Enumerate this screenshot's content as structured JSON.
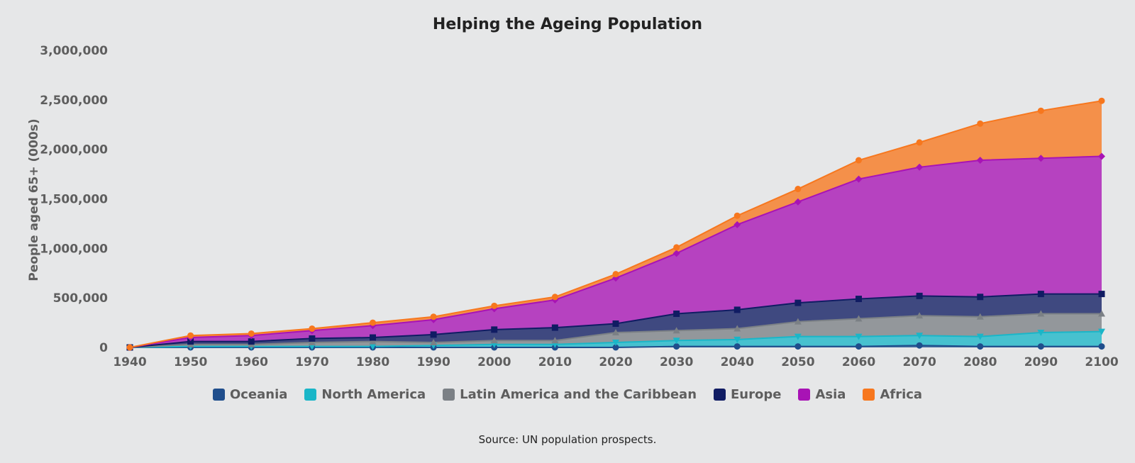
{
  "chart_data": {
    "type": "area",
    "stacked": true,
    "title": "Helping the Ageing Population",
    "ylabel": "People aged 65+ (000s)",
    "xlabel": "",
    "x": [
      1940,
      1950,
      1960,
      1970,
      1980,
      1990,
      2000,
      2010,
      2020,
      2030,
      2040,
      2050,
      2060,
      2070,
      2080,
      2090,
      2100
    ],
    "ylim": [
      0,
      3000000
    ],
    "yticks": [
      0,
      500000,
      1000000,
      1500000,
      2000000,
      2500000,
      3000000
    ],
    "ytick_labels": [
      "0",
      "500,000",
      "1,000,000",
      "1,500,000",
      "2,000,000",
      "2,500,000",
      "3,000,000"
    ],
    "series": [
      {
        "name": "Oceania",
        "color": "#1f4e8c",
        "marker": "circle",
        "values": [
          0,
          0,
          0,
          0,
          0,
          0,
          0,
          0,
          0,
          10000,
          10000,
          10000,
          10000,
          20000,
          10000,
          10000,
          10000
        ]
      },
      {
        "name": "North America",
        "color": "#1ab6c8",
        "marker": "triangle-down",
        "values": [
          0,
          10000,
          10000,
          10000,
          10000,
          20000,
          30000,
          30000,
          50000,
          60000,
          70000,
          100000,
          100000,
          100000,
          100000,
          140000,
          150000
        ]
      },
      {
        "name": "Latin America and the Caribbean",
        "color": "#7b8085",
        "marker": "triangle",
        "values": [
          0,
          20000,
          20000,
          40000,
          50000,
          30000,
          40000,
          40000,
          100000,
          100000,
          110000,
          150000,
          180000,
          200000,
          200000,
          190000,
          180000
        ]
      },
      {
        "name": "Europe",
        "color": "#101c63",
        "marker": "square",
        "values": [
          0,
          30000,
          30000,
          40000,
          40000,
          80000,
          110000,
          130000,
          90000,
          170000,
          190000,
          190000,
          200000,
          200000,
          200000,
          200000,
          200000
        ]
      },
      {
        "name": "Asia",
        "color": "#a813b5",
        "marker": "diamond",
        "values": [
          0,
          40000,
          60000,
          80000,
          120000,
          150000,
          210000,
          280000,
          460000,
          610000,
          860000,
          1020000,
          1210000,
          1300000,
          1380000,
          1370000,
          1390000
        ]
      },
      {
        "name": "Africa",
        "color": "#f7771e",
        "marker": "circle",
        "values": [
          0,
          20000,
          20000,
          20000,
          30000,
          30000,
          30000,
          30000,
          40000,
          60000,
          90000,
          130000,
          190000,
          250000,
          370000,
          480000,
          560000
        ]
      }
    ],
    "legend_position": "bottom-center",
    "grid": false
  },
  "source": "Source: UN population prospects."
}
